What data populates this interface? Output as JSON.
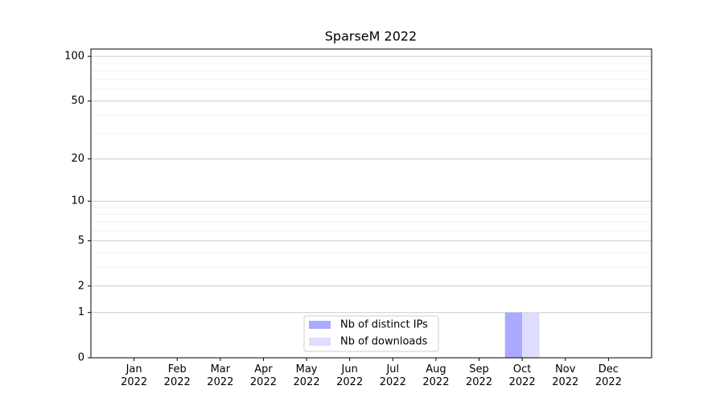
{
  "chart_data": {
    "type": "bar",
    "title": "SparseM 2022",
    "categories": [
      "Jan\n2022",
      "Feb\n2022",
      "Mar\n2022",
      "Apr\n2022",
      "May\n2022",
      "Jun\n2022",
      "Jul\n2022",
      "Aug\n2022",
      "Sep\n2022",
      "Oct\n2022",
      "Nov\n2022",
      "Dec\n2022"
    ],
    "series": [
      {
        "name": "Nb of distinct IPs",
        "color": "#aaaaff",
        "values": [
          0,
          0,
          0,
          0,
          0,
          0,
          0,
          0,
          0,
          1,
          0,
          0
        ]
      },
      {
        "name": "Nb of downloads",
        "color": "#ddddff",
        "values": [
          0,
          0,
          0,
          0,
          0,
          0,
          0,
          0,
          0,
          1,
          0,
          0
        ]
      }
    ],
    "yscale": "log1p",
    "ylim": [
      0,
      112
    ],
    "yticks": [
      0,
      1,
      2,
      5,
      10,
      20,
      50,
      100
    ],
    "minor_yticks": [
      3,
      4,
      6,
      7,
      8,
      9,
      30,
      40,
      60,
      70,
      80,
      90
    ],
    "grid": true,
    "legend": "lower center"
  }
}
